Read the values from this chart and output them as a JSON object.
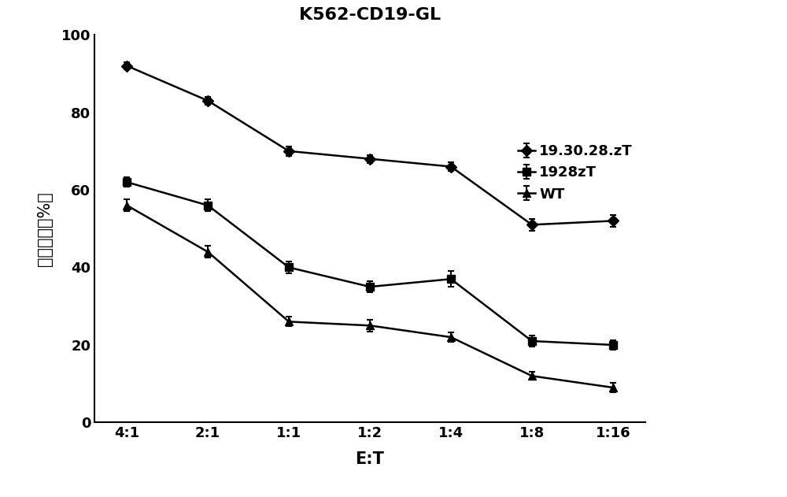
{
  "title": "K562-CD19-GL",
  "xlabel": "E:T",
  "ylabel": "杀伤效率（%）",
  "x_labels": [
    "4:1",
    "2:1",
    "1:1",
    "1:2",
    "1:4",
    "1:8",
    "1:16"
  ],
  "x_positions": [
    0,
    1,
    2,
    3,
    4,
    5,
    6
  ],
  "ylim": [
    0,
    100
  ],
  "series": [
    {
      "label": "19.30.28.zT",
      "values": [
        92,
        83,
        70,
        68,
        66,
        51,
        52
      ],
      "errors": [
        1.0,
        1.0,
        1.2,
        1.0,
        1.2,
        1.5,
        1.5
      ],
      "color": "#000000",
      "marker": "D",
      "linestyle": "-",
      "linewidth": 1.8,
      "markersize": 7
    },
    {
      "label": "1928zT",
      "values": [
        62,
        56,
        40,
        35,
        37,
        21,
        20
      ],
      "errors": [
        1.2,
        1.5,
        1.5,
        1.5,
        2.0,
        1.5,
        1.2
      ],
      "color": "#000000",
      "marker": "s",
      "linestyle": "-",
      "linewidth": 1.8,
      "markersize": 7
    },
    {
      "label": "WT",
      "values": [
        56,
        44,
        26,
        25,
        22,
        12,
        9
      ],
      "errors": [
        1.5,
        1.5,
        1.2,
        1.5,
        1.2,
        1.0,
        1.2
      ],
      "color": "#000000",
      "marker": "^",
      "linestyle": "-",
      "linewidth": 1.8,
      "markersize": 7
    }
  ],
  "yticks": [
    0,
    20,
    40,
    60,
    80,
    100
  ],
  "title_fontsize": 16,
  "label_fontsize": 15,
  "tick_fontsize": 13,
  "legend_fontsize": 13,
  "background_color": "#ffffff"
}
